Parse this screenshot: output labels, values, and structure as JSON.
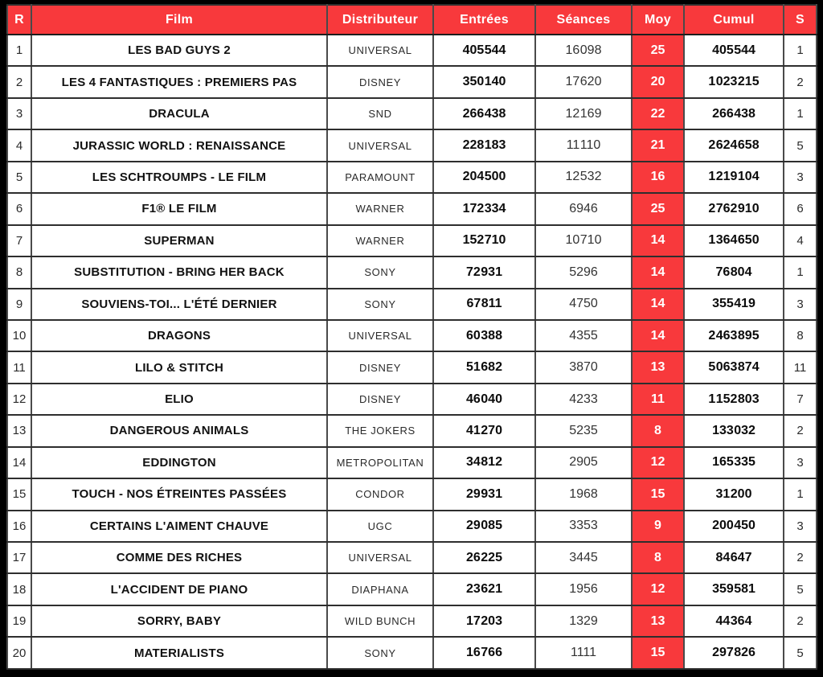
{
  "colors": {
    "accent_red": "#f8393c",
    "header_text": "#ffffff",
    "grid_border_horizontal": "#2e2e2e",
    "grid_border_vertical": "#4a4a4a",
    "outer_frame": "#000000",
    "row_background": "#ffffff"
  },
  "chart_data": {
    "type": "table",
    "columns": [
      "R",
      "Film",
      "Distributeur",
      "Entrées",
      "Séances",
      "Moy",
      "Cumul",
      "S"
    ],
    "rows": [
      [
        1,
        "LES BAD GUYS 2",
        "UNIVERSAL",
        405544,
        16098,
        25,
        405544,
        1
      ],
      [
        2,
        "LES 4 FANTASTIQUES : PREMIERS PAS",
        "DISNEY",
        350140,
        17620,
        20,
        1023215,
        2
      ],
      [
        3,
        "DRACULA",
        "SND",
        266438,
        12169,
        22,
        266438,
        1
      ],
      [
        4,
        "JURASSIC WORLD : RENAISSANCE",
        "UNIVERSAL",
        228183,
        11110,
        21,
        2624658,
        5
      ],
      [
        5,
        "LES SCHTROUMPS - LE FILM",
        "PARAMOUNT",
        204500,
        12532,
        16,
        1219104,
        3
      ],
      [
        6,
        "F1® LE FILM",
        "WARNER",
        172334,
        6946,
        25,
        2762910,
        6
      ],
      [
        7,
        "SUPERMAN",
        "WARNER",
        152710,
        10710,
        14,
        1364650,
        4
      ],
      [
        8,
        "SUBSTITUTION - BRING HER BACK",
        "SONY",
        72931,
        5296,
        14,
        76804,
        1
      ],
      [
        9,
        "SOUVIENS-TOI... L'ÉTÉ DERNIER",
        "SONY",
        67811,
        4750,
        14,
        355419,
        3
      ],
      [
        10,
        "DRAGONS",
        "UNIVERSAL",
        60388,
        4355,
        14,
        2463895,
        8
      ],
      [
        11,
        "LILO & STITCH",
        "DISNEY",
        51682,
        3870,
        13,
        5063874,
        11
      ],
      [
        12,
        "ELIO",
        "DISNEY",
        46040,
        4233,
        11,
        1152803,
        7
      ],
      [
        13,
        "DANGEROUS ANIMALS",
        "THE JOKERS",
        41270,
        5235,
        8,
        133032,
        2
      ],
      [
        14,
        "EDDINGTON",
        "METROPOLITAN",
        34812,
        2905,
        12,
        165335,
        3
      ],
      [
        15,
        "TOUCH - NOS ÉTREINTES PASSÉES",
        "CONDOR",
        29931,
        1968,
        15,
        31200,
        1
      ],
      [
        16,
        "CERTAINS L'AIMENT CHAUVE",
        "UGC",
        29085,
        3353,
        9,
        200450,
        3
      ],
      [
        17,
        "COMME DES RICHES",
        "UNIVERSAL",
        26225,
        3445,
        8,
        84647,
        2
      ],
      [
        18,
        "L'ACCIDENT DE PIANO",
        "DIAPHANA",
        23621,
        1956,
        12,
        359581,
        5
      ],
      [
        19,
        "SORRY, BABY",
        "WILD BUNCH",
        17203,
        1329,
        13,
        44364,
        2
      ],
      [
        20,
        "MATERIALISTS",
        "SONY",
        16766,
        1111,
        15,
        297826,
        5
      ]
    ]
  }
}
